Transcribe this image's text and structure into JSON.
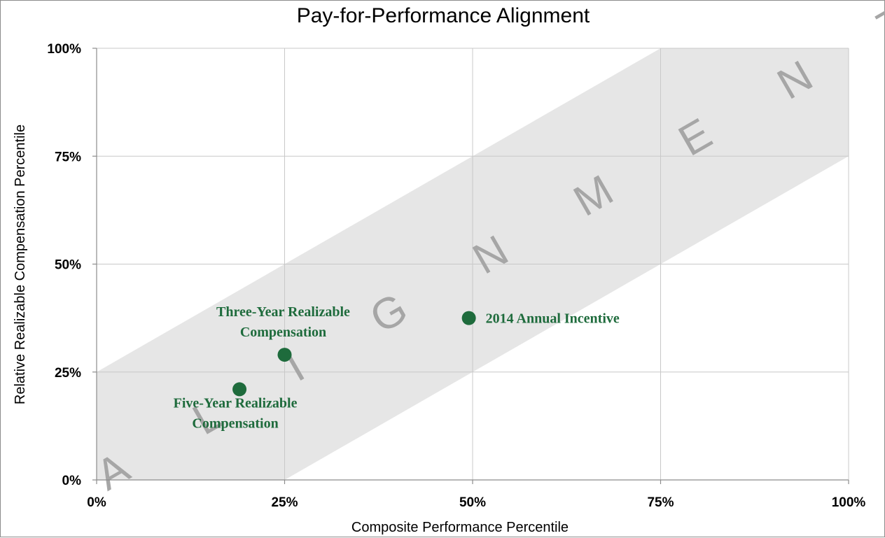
{
  "chart_data": {
    "type": "scatter",
    "title": "Pay-for-Performance Alignment",
    "xlabel": "Composite Performance Percentile",
    "ylabel": "Relative Realizable Compensation Percentile",
    "xlim": [
      0,
      100
    ],
    "ylim": [
      0,
      100
    ],
    "x_ticks": [
      "0%",
      "25%",
      "50%",
      "75%",
      "100%"
    ],
    "y_ticks": [
      "0%",
      "25%",
      "50%",
      "75%",
      "100%"
    ],
    "grid": true,
    "band": {
      "label": "A L I G N M E N T",
      "upper": [
        [
          0,
          25
        ],
        [
          75,
          100
        ],
        [
          100,
          100
        ]
      ],
      "lower": [
        [
          0,
          0
        ],
        [
          25,
          0
        ],
        [
          100,
          75
        ]
      ],
      "color": "#e6e6e6"
    },
    "points": [
      {
        "label_lines": [
          "Three-Year Realizable",
          "Compensation"
        ],
        "x": 25,
        "y": 29
      },
      {
        "label_lines": [
          "Five-Year Realizable",
          "Compensation"
        ],
        "x": 19,
        "y": 21
      },
      {
        "label_lines": [
          "2014 Annual Incentive"
        ],
        "x": 49.5,
        "y": 37.5
      }
    ],
    "point_color": "#1e6b3c"
  }
}
